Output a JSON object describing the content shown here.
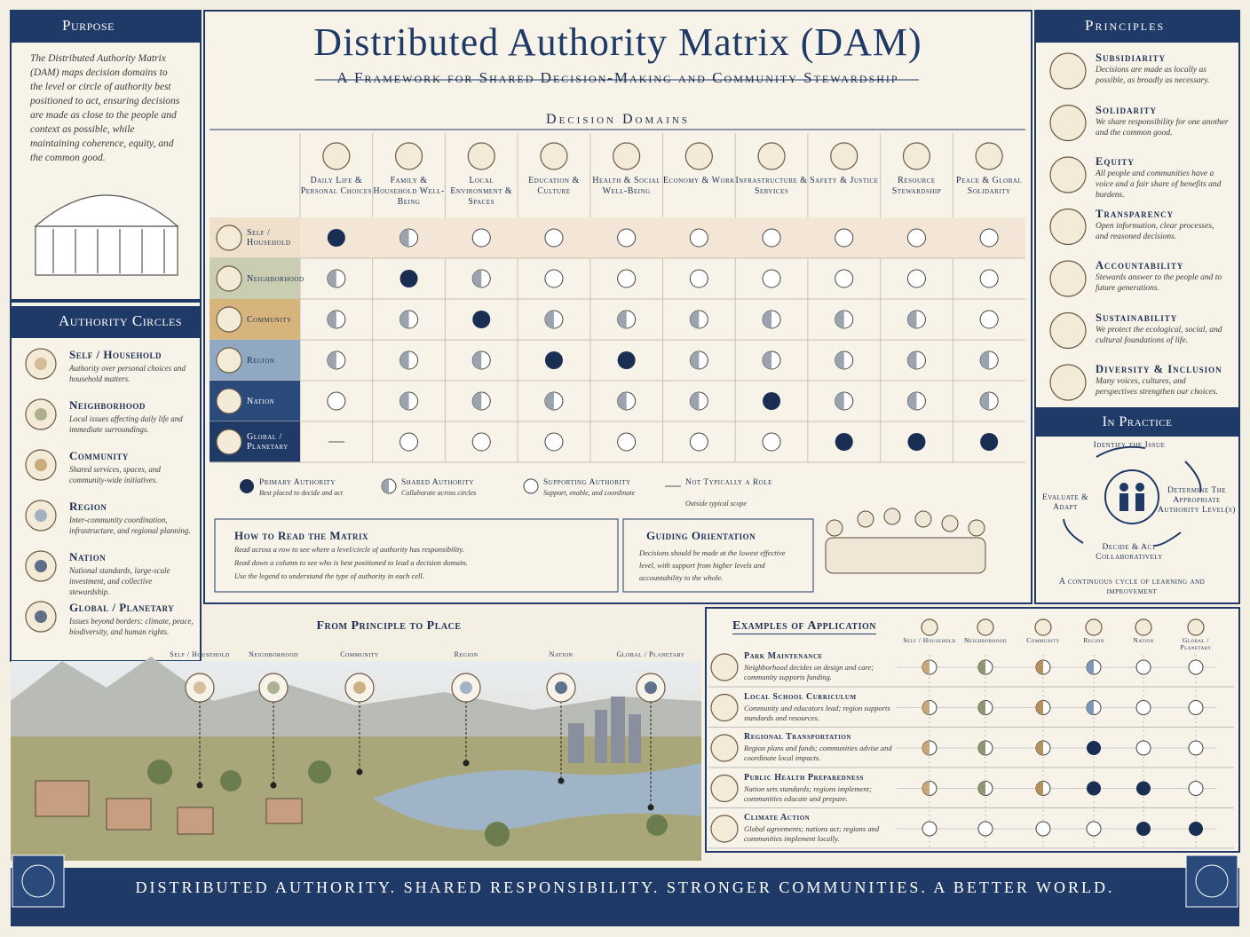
{
  "header": {
    "title": "Distributed Authority Matrix (DAM)",
    "subtitle": "A Framework for Shared Decision-Making and Community Stewardship"
  },
  "purpose": {
    "heading": "Purpose",
    "text": "The Distributed Authority Matrix (DAM) maps decision domains to the level or circle of authority best positioned to act, ensuring decisions are made as close to the people and context as possible, while maintaining coherence, equity, and the common good."
  },
  "circles": {
    "heading": "Authority Circles",
    "items": [
      {
        "name": "Self / Household",
        "desc": "Authority over personal choices and household matters.",
        "color": "#c9a77a",
        "band": "#efe0cb"
      },
      {
        "name": "Neighborhood",
        "desc": "Local issues affecting daily life and immediate surroundings.",
        "color": "#8f9670",
        "band": "#c9cdb1"
      },
      {
        "name": "Community",
        "desc": "Shared services, spaces, and community-wide initiatives.",
        "color": "#b8915a",
        "band": "#d8b47d"
      },
      {
        "name": "Region",
        "desc": "Inter-community coordination, infrastructure, and regional planning.",
        "color": "#7f97b5",
        "band": "#91a8c2"
      },
      {
        "name": "Nation",
        "desc": "National standards, large-scale investment, and collective stewardship.",
        "color": "#1f3a66",
        "band": "#2a4a7c"
      },
      {
        "name": "Global / Planetary",
        "desc": "Issues beyond borders: climate, peace, biodiversity, and human rights.",
        "color": "#1f3a66",
        "band": "#1f3a66"
      }
    ]
  },
  "matrix": {
    "heading": "Decision Domains",
    "domains": [
      "Daily Life & Personal Choices",
      "Family & Household Well-Being",
      "Local Environment & Spaces",
      "Education & Culture",
      "Health & Social Well-Being",
      "Economy & Work",
      "Infrastructure & Services",
      "Safety & Justice",
      "Resource Stewardship",
      "Peace & Global Solidarity"
    ],
    "cells": [
      [
        "primary",
        "shared",
        "supporting",
        "supporting",
        "supporting",
        "supporting",
        "supporting",
        "supporting",
        "supporting",
        "supporting"
      ],
      [
        "shared",
        "primary",
        "shared",
        "supporting",
        "supporting",
        "supporting",
        "supporting",
        "supporting",
        "supporting",
        "supporting"
      ],
      [
        "shared",
        "shared",
        "primary",
        "shared",
        "shared",
        "shared",
        "shared",
        "shared",
        "shared",
        "supporting"
      ],
      [
        "shared",
        "shared",
        "shared",
        "primary",
        "primary",
        "shared",
        "shared",
        "shared",
        "shared",
        "shared"
      ],
      [
        "supporting",
        "shared",
        "shared",
        "shared",
        "shared",
        "shared",
        "primary",
        "shared",
        "shared",
        "shared"
      ],
      [
        "none",
        "supporting",
        "supporting",
        "supporting",
        "supporting",
        "supporting",
        "supporting",
        "primary",
        "primary",
        "primary"
      ]
    ]
  },
  "legend": [
    {
      "state": "primary",
      "label": "Primary Authority",
      "note": "Best placed to decide and act"
    },
    {
      "state": "shared",
      "label": "Shared Authority",
      "note": "Collaborate across circles"
    },
    {
      "state": "supporting",
      "label": "Supporting Authority",
      "note": "Support, enable, and coordinate"
    },
    {
      "state": "none",
      "label": "Not Typically a Role",
      "note": "Outside typical scope"
    }
  ],
  "howto": {
    "heading": "How to Read the Matrix",
    "lines": [
      "Read across a row to see where a level/circle of authority has responsibility.",
      "Read down a column to see who is best positioned to lead a decision domain.",
      "Use the legend to understand the type of authority in each cell."
    ]
  },
  "guiding": {
    "heading": "Guiding Orientation",
    "text": "Decisions should be made at the lowest effective level, with support from higher levels and accountability to the whole."
  },
  "principles": {
    "heading": "Principles",
    "items": [
      {
        "name": "Subsidiarity",
        "desc": "Decisions are made as locally as possible, as broadly as necessary."
      },
      {
        "name": "Solidarity",
        "desc": "We share responsibility for one another and the common good."
      },
      {
        "name": "Equity",
        "desc": "All people and communities have a voice and a fair share of benefits and burdens."
      },
      {
        "name": "Transparency",
        "desc": "Open information, clear processes, and reasoned decisions."
      },
      {
        "name": "Accountability",
        "desc": "Stewards answer to the people and to future generations."
      },
      {
        "name": "Sustainability",
        "desc": "We protect the ecological, social, and cultural foundations of life."
      },
      {
        "name": "Diversity & Inclusion",
        "desc": "Many voices, cultures, and perspectives strengthen our choices."
      }
    ]
  },
  "practice": {
    "heading": "In Practice",
    "steps": [
      "Identify the Issue",
      "Determine The Appropriate Authority Level(s)",
      "Decide & Act Collaboratively",
      "Evaluate & Adapt"
    ],
    "caption": "A continuous cycle of learning and improvement"
  },
  "place": {
    "heading": "From Principle to Place"
  },
  "examples": {
    "heading": "Examples of Application",
    "items": [
      {
        "name": "Park Maintenance",
        "desc": "Neighborhood decides on design and care; community supports funding.",
        "states": [
          "shared",
          "shared",
          "shared",
          "shared",
          "supporting",
          "supporting"
        ]
      },
      {
        "name": "Local School Curriculum",
        "desc": "Community and educators lead; region supports standards and resources.",
        "states": [
          "shared",
          "shared",
          "shared",
          "shared",
          "supporting",
          "supporting"
        ]
      },
      {
        "name": "Regional Transportation",
        "desc": "Region plans and funds; communities advise and coordinate local impacts.",
        "states": [
          "shared",
          "shared",
          "shared",
          "primary",
          "supporting",
          "supporting"
        ]
      },
      {
        "name": "Public Health Preparedness",
        "desc": "Nation sets standards; regions implement; communities educate and prepare.",
        "states": [
          "shared",
          "shared",
          "shared",
          "primary",
          "primary",
          "supporting"
        ]
      },
      {
        "name": "Climate Action",
        "desc": "Global agreements; nations act; regions and communities implement locally.",
        "states": [
          "supporting",
          "supporting",
          "supporting",
          "supporting",
          "primary",
          "primary"
        ]
      }
    ]
  },
  "footer": {
    "text": "Distributed Authority. Shared Responsibility. Stronger Communities. A Better World."
  }
}
